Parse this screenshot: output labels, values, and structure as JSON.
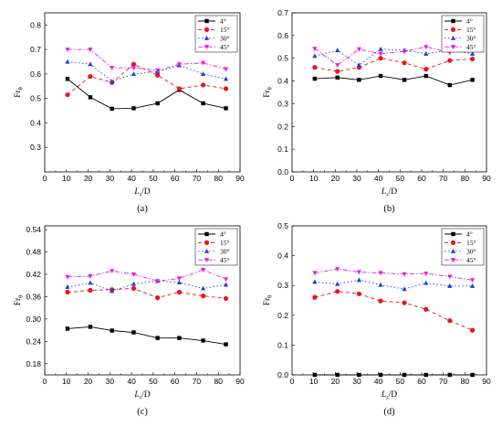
{
  "figure": {
    "x_title_main": "L",
    "x_title_sub": "s",
    "x_title_tail": "/D",
    "y_title_main": "Fr",
    "y_title_sub": "θ"
  },
  "legend_labels": [
    "4°",
    "15°",
    "30°",
    "45°"
  ],
  "series_styles": [
    {
      "color": "#000000",
      "marker": "square",
      "dash": ""
    },
    {
      "color": "#e8141e",
      "marker": "circle",
      "dash": "4,3"
    },
    {
      "color": "#1f3fe0",
      "marker": "triangle-up",
      "dash": "1.5,2.5"
    },
    {
      "color": "#e81ee0",
      "marker": "triangle-down",
      "dash": "5,2,1.5,2"
    }
  ],
  "chart_data": [
    {
      "type": "line",
      "panel_label": "(a)",
      "xlim": [
        0,
        90
      ],
      "ylim": [
        0.2,
        0.85
      ],
      "x_ticks": [
        0,
        10,
        20,
        30,
        40,
        50,
        60,
        70,
        80,
        90
      ],
      "y_ticks": [
        0.3,
        0.4,
        0.5,
        0.6,
        0.7,
        0.8
      ],
      "y_tick_labels": [
        "0.3",
        "0.4",
        "0.5",
        "0.6",
        "0.7",
        "0.8"
      ],
      "x": [
        10.5,
        21,
        31,
        41,
        52,
        62,
        73,
        83.5
      ],
      "series": [
        {
          "name": "4°",
          "values": [
            0.58,
            0.505,
            0.458,
            0.46,
            0.48,
            0.535,
            0.48,
            0.46
          ]
        },
        {
          "name": "15°",
          "values": [
            0.515,
            0.59,
            0.565,
            0.64,
            0.595,
            0.54,
            0.555,
            0.54
          ]
        },
        {
          "name": "30°",
          "values": [
            0.65,
            0.64,
            0.57,
            0.6,
            0.61,
            0.635,
            0.6,
            0.58
          ]
        },
        {
          "name": "45°",
          "values": [
            0.7,
            0.7,
            0.625,
            0.625,
            0.615,
            0.64,
            0.645,
            0.62
          ]
        }
      ]
    },
    {
      "type": "line",
      "panel_label": "(b)",
      "xlim": [
        0,
        90
      ],
      "ylim": [
        0.0,
        0.7
      ],
      "x_ticks": [
        0,
        10,
        20,
        30,
        40,
        50,
        60,
        70,
        80,
        90
      ],
      "y_ticks": [
        0.0,
        0.1,
        0.2,
        0.3,
        0.4,
        0.5,
        0.6,
        0.7
      ],
      "y_tick_labels": [
        "0.0",
        "0.1",
        "0.2",
        "0.3",
        "0.4",
        "0.5",
        "0.6",
        "0.7"
      ],
      "x": [
        10.5,
        21,
        31,
        41,
        52,
        62,
        73,
        83.5
      ],
      "series": [
        {
          "name": "4°",
          "values": [
            0.41,
            0.415,
            0.405,
            0.422,
            0.405,
            0.422,
            0.382,
            0.405
          ]
        },
        {
          "name": "15°",
          "values": [
            0.46,
            0.442,
            0.46,
            0.5,
            0.48,
            0.452,
            0.49,
            0.497
          ]
        },
        {
          "name": "30°",
          "values": [
            0.51,
            0.535,
            0.47,
            0.54,
            0.535,
            0.52,
            0.535,
            0.52
          ]
        },
        {
          "name": "45°",
          "values": [
            0.542,
            0.47,
            0.54,
            0.52,
            0.53,
            0.55,
            0.525,
            0.542
          ]
        }
      ]
    },
    {
      "type": "line",
      "panel_label": "(c)",
      "xlim": [
        0,
        90
      ],
      "ylim": [
        0.15,
        0.55
      ],
      "x_ticks": [
        0,
        10,
        20,
        30,
        40,
        50,
        60,
        70,
        80,
        90
      ],
      "y_ticks": [
        0.18,
        0.24,
        0.3,
        0.36,
        0.42,
        0.48,
        0.54
      ],
      "y_tick_labels": [
        "0.18",
        "0.24",
        "0.30",
        "0.36",
        "0.42",
        "0.48",
        "0.54"
      ],
      "x": [
        10.5,
        21,
        31,
        41,
        52,
        62,
        73,
        83.5
      ],
      "series": [
        {
          "name": "4°",
          "values": [
            0.274,
            0.279,
            0.269,
            0.264,
            0.249,
            0.249,
            0.242,
            0.232
          ]
        },
        {
          "name": "15°",
          "values": [
            0.372,
            0.377,
            0.379,
            0.382,
            0.357,
            0.372,
            0.362,
            0.355
          ]
        },
        {
          "name": "30°",
          "values": [
            0.386,
            0.397,
            0.375,
            0.394,
            0.402,
            0.398,
            0.382,
            0.392
          ]
        },
        {
          "name": "45°",
          "values": [
            0.413,
            0.415,
            0.429,
            0.42,
            0.402,
            0.409,
            0.432,
            0.407
          ]
        }
      ]
    },
    {
      "type": "line",
      "panel_label": "(d)",
      "xlim": [
        0,
        90
      ],
      "ylim": [
        0.0,
        0.5
      ],
      "x_ticks": [
        0,
        10,
        20,
        30,
        40,
        50,
        60,
        70,
        80,
        90
      ],
      "y_ticks": [
        0.0,
        0.1,
        0.2,
        0.3,
        0.4,
        0.5
      ],
      "y_tick_labels": [
        "0.0",
        "0.1",
        "0.2",
        "0.3",
        "0.4",
        "0.5"
      ],
      "x": [
        10.5,
        21,
        31,
        41,
        52,
        62,
        73,
        83.5
      ],
      "series": [
        {
          "name": "4°",
          "values": [
            0.0,
            0.0,
            0.0,
            0.0,
            0.0,
            0.0,
            0.0,
            0.0
          ]
        },
        {
          "name": "15°",
          "values": [
            0.26,
            0.28,
            0.272,
            0.248,
            0.242,
            0.22,
            0.182,
            0.15
          ]
        },
        {
          "name": "30°",
          "values": [
            0.312,
            0.305,
            0.318,
            0.302,
            0.288,
            0.308,
            0.298,
            0.298
          ]
        },
        {
          "name": "45°",
          "values": [
            0.342,
            0.355,
            0.345,
            0.342,
            0.338,
            0.34,
            0.33,
            0.318
          ]
        }
      ]
    }
  ]
}
